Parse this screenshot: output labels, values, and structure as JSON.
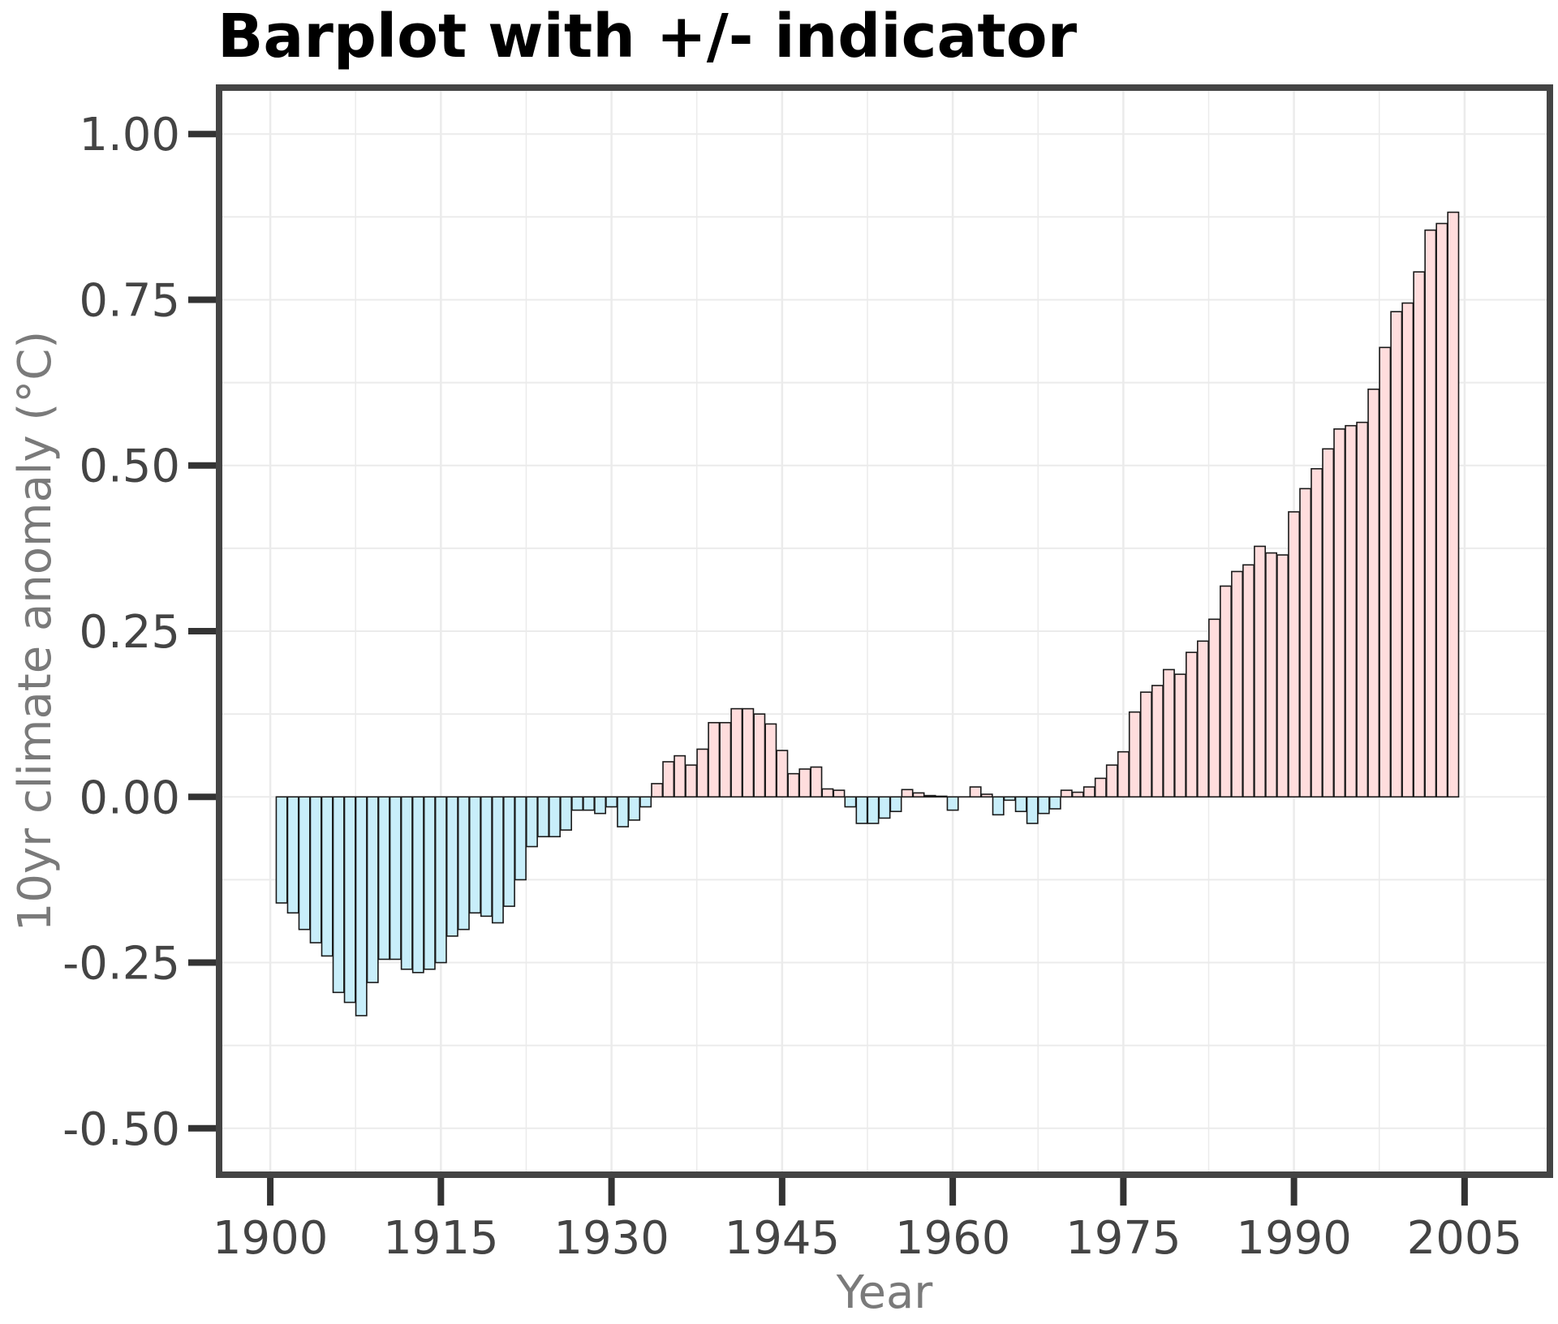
{
  "chart_data": {
    "type": "bar",
    "title": "Barplot with +/- indicator",
    "xlabel": "Year",
    "ylabel": "10yr climate anomaly (°C)",
    "xlim": [
      1895.5,
      2012.5
    ],
    "ylim": [
      -0.57,
      1.07
    ],
    "x_ticks": [
      1900,
      1915,
      1930,
      1945,
      1960,
      1975,
      1990,
      2005
    ],
    "x_tick_labels": [
      "1900",
      "1915",
      "1930",
      "1945",
      "1960",
      "1975",
      "1990",
      "2005"
    ],
    "y_ticks": [
      1.0,
      0.75,
      0.5,
      0.25,
      0.0,
      -0.25,
      -0.5
    ],
    "y_tick_labels": [
      "1.00",
      "0.75",
      "0.50",
      "0.25",
      "0.00",
      "-0.25",
      "-0.50"
    ],
    "grid": true,
    "legend": "none",
    "colors": {
      "positive": "#ffdddd",
      "negative": "#c8eefa",
      "bar_outline": "#1a1a1a",
      "frame": "#444444",
      "grid": "#ebebeb"
    },
    "x": [
      1901,
      1902,
      1903,
      1904,
      1905,
      1906,
      1907,
      1908,
      1909,
      1910,
      1911,
      1912,
      1913,
      1914,
      1915,
      1916,
      1917,
      1918,
      1919,
      1920,
      1921,
      1922,
      1923,
      1924,
      1925,
      1926,
      1927,
      1928,
      1929,
      1930,
      1931,
      1932,
      1933,
      1934,
      1935,
      1936,
      1937,
      1938,
      1939,
      1940,
      1941,
      1942,
      1943,
      1944,
      1945,
      1946,
      1947,
      1948,
      1949,
      1950,
      1951,
      1952,
      1953,
      1954,
      1955,
      1956,
      1957,
      1958,
      1959,
      1960,
      1961,
      1962,
      1963,
      1964,
      1965,
      1966,
      1967,
      1968,
      1969,
      1970,
      1971,
      1972,
      1973,
      1974,
      1975,
      1976,
      1977,
      1978,
      1979,
      1980,
      1981,
      1982,
      1983,
      1984,
      1985,
      1986,
      1987,
      1988,
      1989,
      1990,
      1991,
      1992,
      1993,
      1994,
      1995,
      1996,
      1997,
      1998,
      1999,
      2000,
      2001,
      2002,
      2003,
      2004
    ],
    "values": [
      -0.16,
      -0.175,
      -0.2,
      -0.22,
      -0.24,
      -0.295,
      -0.31,
      -0.33,
      -0.28,
      -0.245,
      -0.245,
      -0.26,
      -0.265,
      -0.26,
      -0.25,
      -0.21,
      -0.2,
      -0.175,
      -0.18,
      -0.19,
      -0.165,
      -0.125,
      -0.075,
      -0.06,
      -0.06,
      -0.05,
      -0.02,
      -0.02,
      -0.025,
      -0.015,
      -0.045,
      -0.035,
      -0.015,
      0.02,
      0.053,
      0.062,
      0.048,
      0.072,
      0.112,
      0.112,
      0.133,
      0.133,
      0.125,
      0.11,
      0.07,
      0.035,
      0.042,
      0.045,
      0.012,
      0.01,
      -0.015,
      -0.04,
      -0.04,
      -0.032,
      -0.022,
      0.011,
      0.006,
      0.002,
      0.001,
      -0.02,
      0,
      0.015,
      0.004,
      -0.027,
      -0.005,
      -0.022,
      -0.04,
      -0.025,
      -0.018,
      0.01,
      0.007,
      0.015,
      0.028,
      0.048,
      0.068,
      0.128,
      0.158,
      0.168,
      0.192,
      0.185,
      0.218,
      0.235,
      0.268,
      0.318,
      0.34,
      0.35,
      0.378,
      0.368,
      0.365,
      0.43,
      0.465,
      0.495,
      0.525,
      0.555,
      0.56,
      0.565,
      0.615,
      0.678,
      0.732,
      0.745,
      0.792,
      0.855,
      0.865,
      0.882
    ]
  }
}
